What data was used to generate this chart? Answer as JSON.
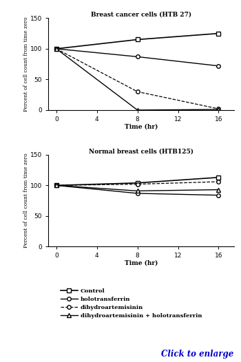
{
  "title1": "Breast cancer cells (HTB 27)",
  "title2": "Normal breast cells (HTB125)",
  "xlabel": "Time (hr)",
  "ylabel": "Percent of cell count from time zero",
  "time_points": [
    0,
    8,
    16
  ],
  "htb27": {
    "control": [
      100,
      115,
      125
    ],
    "holotransferrin": [
      100,
      87,
      72
    ],
    "dihydroartemisinin": [
      100,
      30,
      2
    ],
    "combo": [
      100,
      0,
      1
    ]
  },
  "htb125": {
    "control": [
      100,
      104,
      113
    ],
    "holotransferrin": [
      100,
      87,
      84
    ],
    "dihydroartemisinin": [
      100,
      102,
      106
    ],
    "combo": [
      100,
      91,
      93
    ]
  },
  "ylim": [
    0,
    150
  ],
  "yticks": [
    0,
    50,
    100,
    150
  ],
  "xticks": [
    0,
    4,
    8,
    12,
    16
  ],
  "legend_labels": [
    "Control",
    "holotransferrin",
    "dihydroartemisinin",
    "dihydroartemisinin + holotransferrin"
  ],
  "bg_color": "#ffffff",
  "line_color": "#000000",
  "click_text": "Click to enlarge"
}
